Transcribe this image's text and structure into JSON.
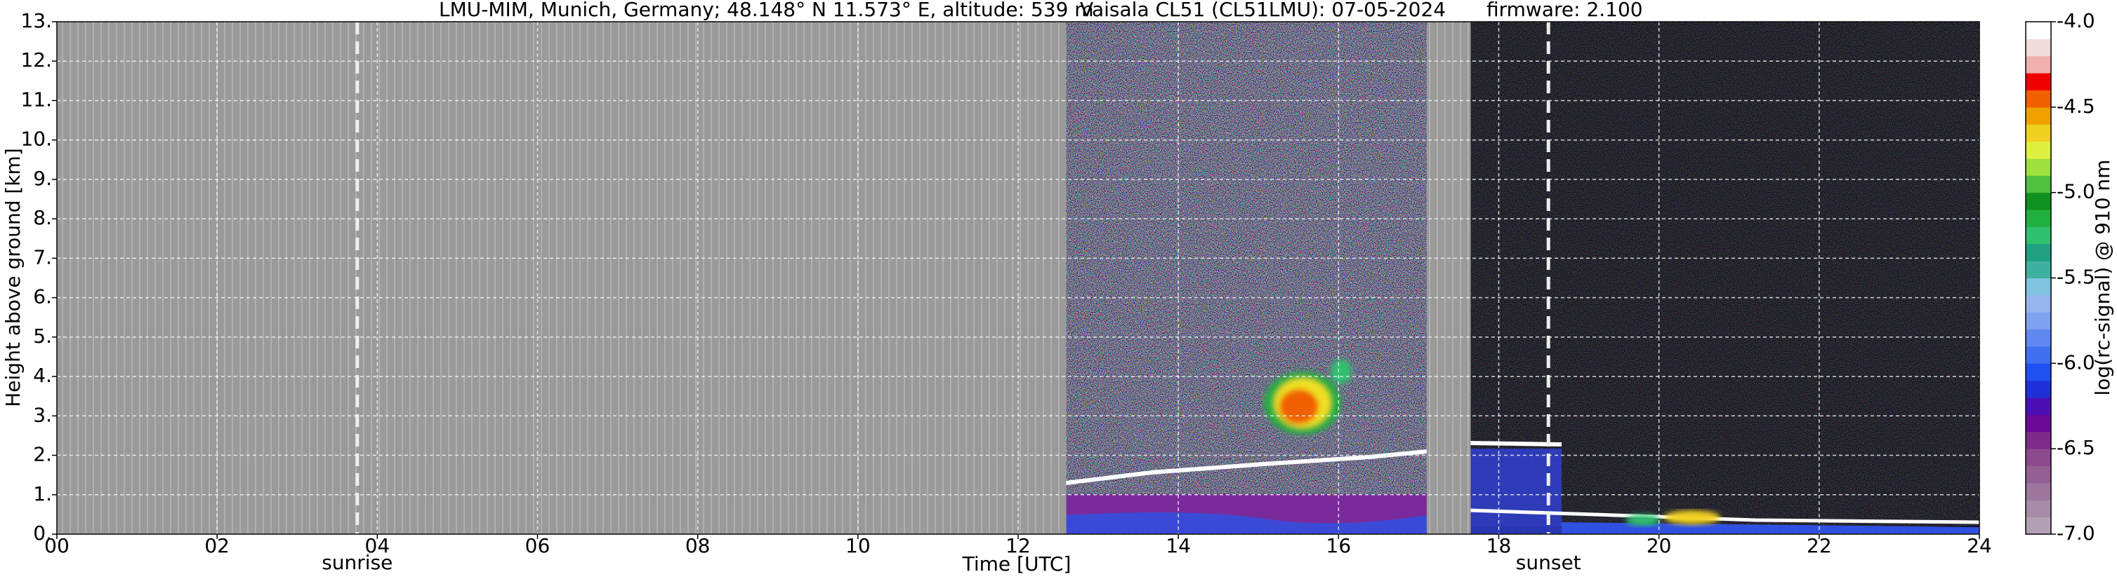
{
  "chart_data": {
    "type": "heatmap",
    "title": [
      "LMU-MIM, Munich, Germany; 48.148° N 11.573° E, altitude: 539 m",
      "Vaisala CL51 (CL51LMU): 07-05-2024",
      "firmware: 2.100"
    ],
    "x_label": "Time [UTC]",
    "y_label": "Height above ground [km]",
    "xlim": [
      0,
      24
    ],
    "xticks": [
      {
        "value": 0,
        "label": "00"
      },
      {
        "value": 2,
        "label": "02"
      },
      {
        "value": 4,
        "label": "04"
      },
      {
        "value": 6,
        "label": "06"
      },
      {
        "value": 8,
        "label": "08"
      },
      10,
      12,
      14,
      16,
      18,
      20,
      22,
      24
    ],
    "ylim": [
      0,
      13
    ],
    "yticks": [
      {
        "value": 0,
        "label": "0."
      },
      {
        "value": 1,
        "label": "1."
      },
      {
        "value": 2,
        "label": "2."
      },
      {
        "value": 3,
        "label": "3."
      },
      {
        "value": 4,
        "label": "4."
      },
      {
        "value": 5,
        "label": "5."
      },
      {
        "value": 6,
        "label": "6."
      },
      {
        "value": 7,
        "label": "7."
      },
      {
        "value": 8,
        "label": "8."
      },
      {
        "value": 9,
        "label": "9."
      },
      {
        "value": 10,
        "label": "10."
      },
      {
        "value": 11,
        "label": "11."
      },
      {
        "value": 12,
        "label": "12."
      },
      {
        "value": 13,
        "label": "13."
      }
    ],
    "grid": true,
    "no_data": [
      [
        0,
        12.6
      ],
      [
        17.1,
        17.65
      ]
    ],
    "annotations": [
      {
        "text": "sunrise",
        "x": 3.75
      },
      {
        "text": "sunset",
        "x": 18.62
      }
    ],
    "colorbar": {
      "label": "log(rc-signal) @ 910 nm",
      "lim": [
        -7,
        -4
      ],
      "ticks": [
        {
          "value": -7,
          "label": "-7.0"
        },
        -6.5,
        {
          "value": -6,
          "label": "-6.0"
        },
        -5.5,
        {
          "value": -5,
          "label": "-5.0"
        },
        -4.5,
        {
          "value": -4,
          "label": "-4.0"
        }
      ],
      "colors": [
        "#b4a0b4",
        "#a68ca6",
        "#9c769c",
        "#946094",
        "#8c4a8c",
        "#7e2a8a",
        "#6a0a96",
        "#4a10b4",
        "#2030d8",
        "#2050f0",
        "#4070f0",
        "#6088f0",
        "#80a0f0",
        "#98b4f0",
        "#80c4e0",
        "#40b0a0",
        "#20a080",
        "#30c070",
        "#20b040",
        "#109020",
        "#50c040",
        "#a0e040",
        "#e0f040",
        "#f0d020",
        "#f0a000",
        "#f06000",
        "#f00000",
        "#f0b0b0",
        "#f0dcdc",
        "#ffffff"
      ]
    }
  }
}
